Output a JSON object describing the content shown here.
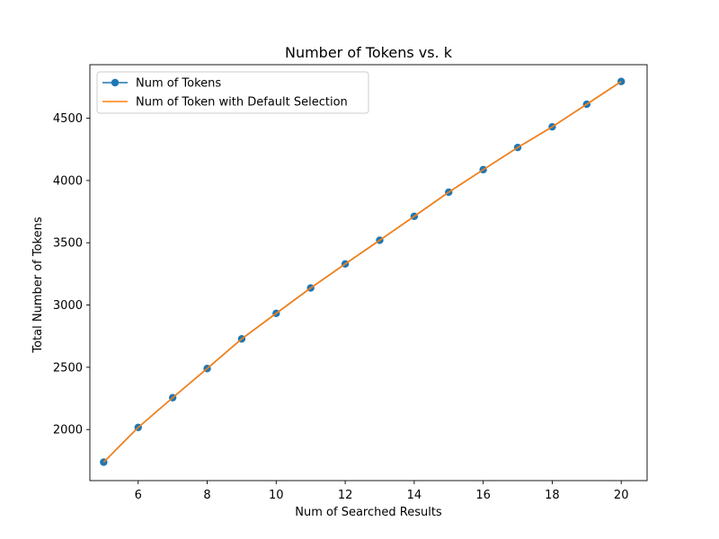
{
  "chart_data": {
    "type": "line",
    "title": "Number of Tokens vs. k",
    "xlabel": "Num of Searched Results",
    "ylabel": "Total Number of Tokens",
    "xlim": [
      4.6,
      20.75
    ],
    "ylim": [
      1590,
      4930
    ],
    "x_ticks": [
      6,
      8,
      10,
      12,
      14,
      16,
      18,
      20
    ],
    "y_ticks": [
      2000,
      2500,
      3000,
      3500,
      4000,
      4500
    ],
    "grid": false,
    "legend_position": "top-left",
    "x": [
      5,
      6,
      7,
      8,
      9,
      10,
      11,
      12,
      13,
      14,
      15,
      16,
      17,
      18,
      19,
      20
    ],
    "series": [
      {
        "name": "Num of Tokens",
        "style": "line-marker",
        "color": "#1f77b4",
        "values": [
          1738,
          2017,
          2256,
          2490,
          2728,
          2933,
          3137,
          3330,
          3520,
          3712,
          3906,
          4087,
          4265,
          4431,
          4612,
          4795
        ]
      },
      {
        "name": "Num of Token with Default Selection",
        "style": "line",
        "color": "#ff7f0e",
        "values": [
          1738,
          2017,
          2256,
          2490,
          2728,
          2933,
          3137,
          3330,
          3520,
          3712,
          3906,
          4087,
          4265,
          4431,
          4612,
          4795
        ]
      }
    ]
  }
}
